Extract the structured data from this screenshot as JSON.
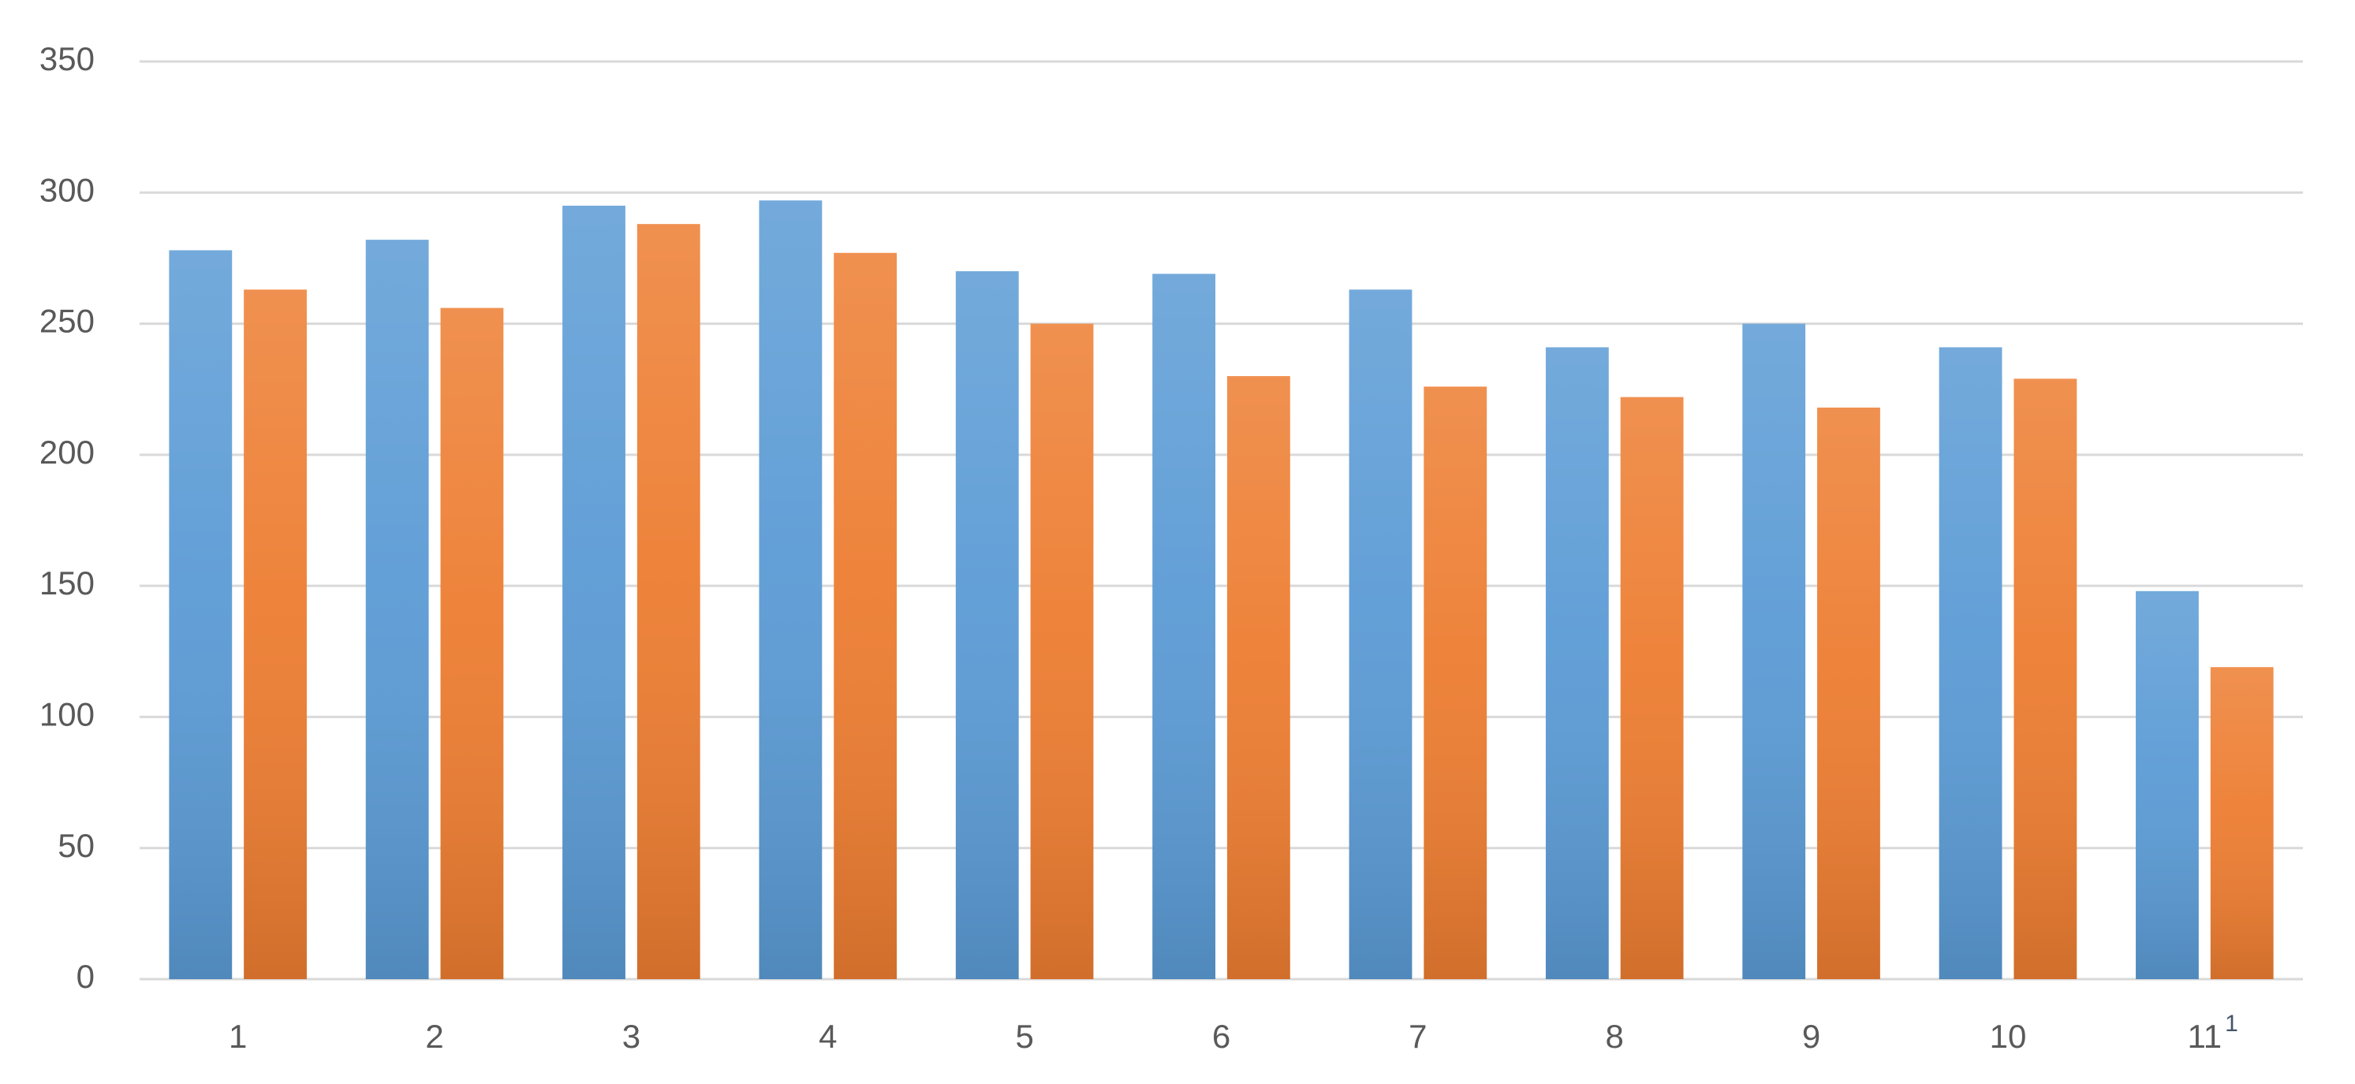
{
  "chart_data": {
    "type": "bar",
    "categories": [
      "1",
      "2",
      "3",
      "4",
      "5",
      "6",
      "7",
      "8",
      "9",
      "10",
      "11"
    ],
    "annotation": "1",
    "series": [
      {
        "color": "#5b9bd5",
        "values": [
          278,
          282,
          295,
          297,
          270,
          269,
          263,
          241,
          250,
          241,
          148
        ]
      },
      {
        "color": "#ed7d31",
        "values": [
          263,
          256,
          288,
          277,
          250,
          230,
          226,
          222,
          218,
          229,
          119
        ]
      }
    ],
    "ylim": [
      0,
      350
    ],
    "yticks": [
      0,
      50,
      100,
      150,
      200,
      250,
      300,
      350
    ],
    "grid": true
  }
}
